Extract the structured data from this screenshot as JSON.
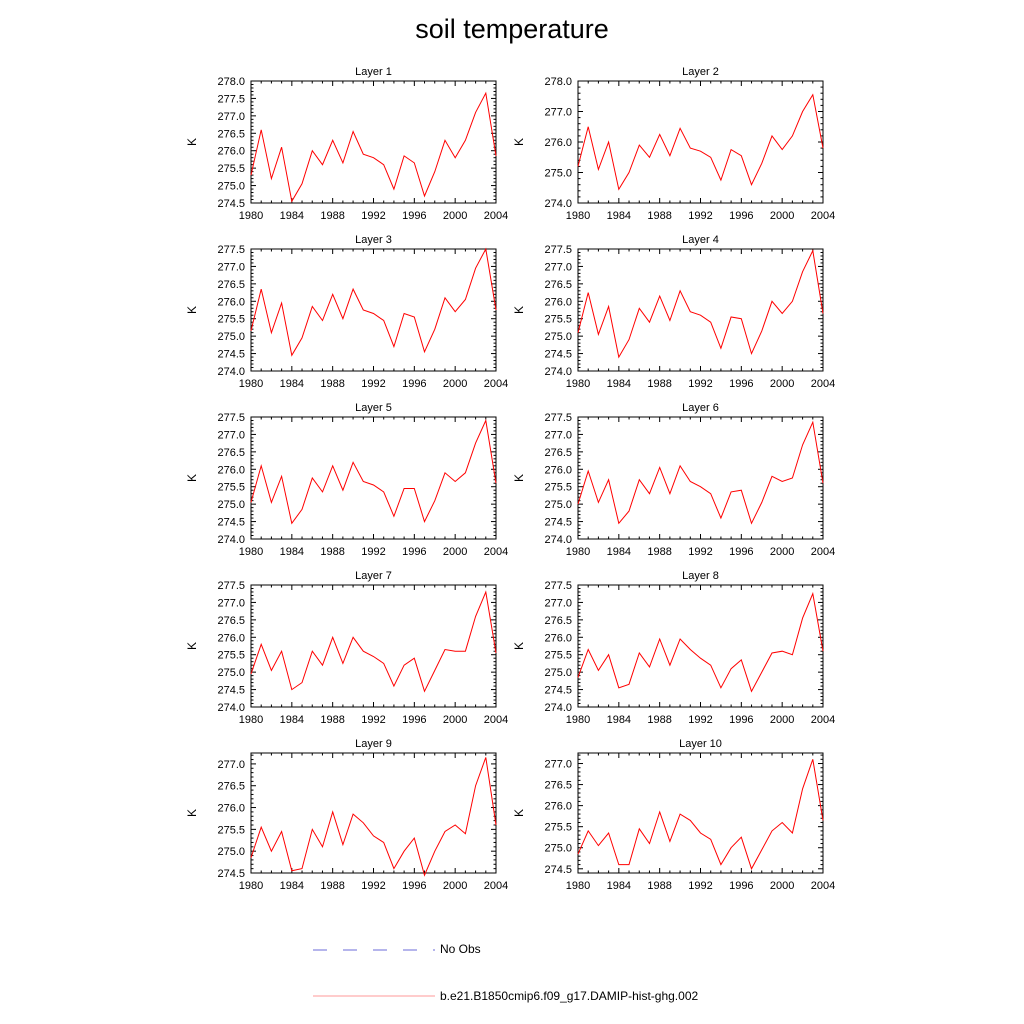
{
  "title": "soil temperature",
  "colors": {
    "model_line": "#ff0000",
    "obs_line": "#6b6bd8",
    "axis": "#000000",
    "legend_model": "#ff9999"
  },
  "chart_data": [
    {
      "type": "line",
      "title": "Layer 1",
      "ylabel": "K",
      "xlim": [
        1980,
        2004
      ],
      "ylim": [
        274.5,
        278.0
      ],
      "x_ticks": [
        1980,
        1984,
        1988,
        1992,
        1996,
        2000,
        2004
      ],
      "y_ticks": [
        274.5,
        275.0,
        275.5,
        276.0,
        276.5,
        277.0,
        277.5,
        278.0
      ],
      "x": [
        1980,
        1981,
        1982,
        1983,
        1984,
        1985,
        1986,
        1987,
        1988,
        1989,
        1990,
        1991,
        1992,
        1993,
        1994,
        1995,
        1996,
        1997,
        1998,
        1999,
        2000,
        2001,
        2002,
        2003,
        2004
      ],
      "y": [
        275.3,
        276.6,
        275.2,
        276.1,
        274.55,
        275.05,
        276.0,
        275.6,
        276.3,
        275.65,
        276.55,
        275.9,
        275.8,
        275.6,
        274.9,
        275.85,
        275.65,
        274.7,
        275.4,
        276.3,
        275.8,
        276.3,
        277.1,
        277.65,
        275.85
      ]
    },
    {
      "type": "line",
      "title": "Layer 2",
      "ylabel": "K",
      "xlim": [
        1980,
        2004
      ],
      "ylim": [
        274.0,
        278.0
      ],
      "x_ticks": [
        1980,
        1984,
        1988,
        1992,
        1996,
        2000,
        2004
      ],
      "y_ticks": [
        274.0,
        275.0,
        276.0,
        277.0,
        278.0
      ],
      "x": [
        1980,
        1981,
        1982,
        1983,
        1984,
        1985,
        1986,
        1987,
        1988,
        1989,
        1990,
        1991,
        1992,
        1993,
        1994,
        1995,
        1996,
        1997,
        1998,
        1999,
        2000,
        2001,
        2002,
        2003,
        2004
      ],
      "y": [
        275.2,
        276.5,
        275.1,
        276.0,
        274.45,
        275.0,
        275.9,
        275.5,
        276.25,
        275.55,
        276.45,
        275.8,
        275.7,
        275.5,
        274.75,
        275.75,
        275.55,
        274.6,
        275.3,
        276.2,
        275.75,
        276.2,
        277.0,
        277.55,
        275.8
      ]
    },
    {
      "type": "line",
      "title": "Layer 3",
      "ylabel": "K",
      "xlim": [
        1980,
        2004
      ],
      "ylim": [
        274.0,
        277.5
      ],
      "x_ticks": [
        1980,
        1984,
        1988,
        1992,
        1996,
        2000,
        2004
      ],
      "y_ticks": [
        274.0,
        274.5,
        275.0,
        275.5,
        276.0,
        276.5,
        277.0,
        277.5
      ],
      "x": [
        1980,
        1981,
        1982,
        1983,
        1984,
        1985,
        1986,
        1987,
        1988,
        1989,
        1990,
        1991,
        1992,
        1993,
        1994,
        1995,
        1996,
        1997,
        1998,
        1999,
        2000,
        2001,
        2002,
        2003,
        2004
      ],
      "y": [
        275.15,
        276.35,
        275.1,
        275.95,
        274.45,
        274.95,
        275.85,
        275.45,
        276.2,
        275.5,
        276.35,
        275.75,
        275.65,
        275.45,
        274.7,
        275.65,
        275.55,
        274.55,
        275.2,
        276.1,
        275.7,
        276.05,
        276.95,
        277.5,
        275.75
      ]
    },
    {
      "type": "line",
      "title": "Layer 4",
      "ylabel": "K",
      "xlim": [
        1980,
        2004
      ],
      "ylim": [
        274.0,
        277.5
      ],
      "x_ticks": [
        1980,
        1984,
        1988,
        1992,
        1996,
        2000,
        2004
      ],
      "y_ticks": [
        274.0,
        274.5,
        275.0,
        275.5,
        276.0,
        276.5,
        277.0,
        277.5
      ],
      "x": [
        1980,
        1981,
        1982,
        1983,
        1984,
        1985,
        1986,
        1987,
        1988,
        1989,
        1990,
        1991,
        1992,
        1993,
        1994,
        1995,
        1996,
        1997,
        1998,
        1999,
        2000,
        2001,
        2002,
        2003,
        2004
      ],
      "y": [
        275.1,
        276.25,
        275.05,
        275.85,
        274.4,
        274.9,
        275.8,
        275.4,
        276.15,
        275.45,
        276.3,
        275.7,
        275.6,
        275.4,
        274.65,
        275.55,
        275.5,
        274.5,
        275.15,
        276.0,
        275.65,
        276.0,
        276.85,
        277.45,
        275.65
      ]
    },
    {
      "type": "line",
      "title": "Layer 5",
      "ylabel": "K",
      "xlim": [
        1980,
        2004
      ],
      "ylim": [
        274.0,
        277.5
      ],
      "x_ticks": [
        1980,
        1984,
        1988,
        1992,
        1996,
        2000,
        2004
      ],
      "y_ticks": [
        274.0,
        274.5,
        275.0,
        275.5,
        276.0,
        276.5,
        277.0,
        277.5
      ],
      "x": [
        1980,
        1981,
        1982,
        1983,
        1984,
        1985,
        1986,
        1987,
        1988,
        1989,
        1990,
        1991,
        1992,
        1993,
        1994,
        1995,
        1996,
        1997,
        1998,
        1999,
        2000,
        2001,
        2002,
        2003,
        2004
      ],
      "y": [
        275.05,
        276.1,
        275.05,
        275.8,
        274.45,
        274.85,
        275.75,
        275.35,
        276.1,
        275.4,
        276.2,
        275.65,
        275.55,
        275.35,
        274.65,
        275.45,
        275.45,
        274.5,
        275.1,
        275.9,
        275.65,
        275.9,
        276.75,
        277.4,
        275.6
      ]
    },
    {
      "type": "line",
      "title": "Layer 6",
      "ylabel": "K",
      "xlim": [
        1980,
        2004
      ],
      "ylim": [
        274.0,
        277.5
      ],
      "x_ticks": [
        1980,
        1984,
        1988,
        1992,
        1996,
        2000,
        2004
      ],
      "y_ticks": [
        274.0,
        274.5,
        275.0,
        275.5,
        276.0,
        276.5,
        277.0,
        277.5
      ],
      "x": [
        1980,
        1981,
        1982,
        1983,
        1984,
        1985,
        1986,
        1987,
        1988,
        1989,
        1990,
        1991,
        1992,
        1993,
        1994,
        1995,
        1996,
        1997,
        1998,
        1999,
        2000,
        2001,
        2002,
        2003,
        2004
      ],
      "y": [
        275.0,
        275.95,
        275.05,
        275.7,
        274.45,
        274.8,
        275.7,
        275.3,
        276.05,
        275.3,
        276.1,
        275.65,
        275.5,
        275.3,
        274.6,
        275.35,
        275.4,
        274.45,
        275.05,
        275.8,
        275.65,
        275.75,
        276.7,
        277.35,
        275.6
      ]
    },
    {
      "type": "line",
      "title": "Layer 7",
      "ylabel": "K",
      "xlim": [
        1980,
        2004
      ],
      "ylim": [
        274.0,
        277.5
      ],
      "x_ticks": [
        1980,
        1984,
        1988,
        1992,
        1996,
        2000,
        2004
      ],
      "y_ticks": [
        274.0,
        274.5,
        275.0,
        275.5,
        276.0,
        276.5,
        277.0,
        277.5
      ],
      "x": [
        1980,
        1981,
        1982,
        1983,
        1984,
        1985,
        1986,
        1987,
        1988,
        1989,
        1990,
        1991,
        1992,
        1993,
        1994,
        1995,
        1996,
        1997,
        1998,
        1999,
        2000,
        2001,
        2002,
        2003,
        2004
      ],
      "y": [
        274.95,
        275.8,
        275.05,
        275.6,
        274.5,
        274.7,
        275.6,
        275.2,
        276.0,
        275.25,
        276.0,
        275.6,
        275.45,
        275.25,
        274.6,
        275.2,
        275.4,
        274.45,
        275.05,
        275.65,
        275.6,
        275.6,
        276.6,
        277.3,
        275.55
      ]
    },
    {
      "type": "line",
      "title": "Layer 8",
      "ylabel": "K",
      "xlim": [
        1980,
        2004
      ],
      "ylim": [
        274.0,
        277.5
      ],
      "x_ticks": [
        1980,
        1984,
        1988,
        1992,
        1996,
        2000,
        2004
      ],
      "y_ticks": [
        274.0,
        274.5,
        275.0,
        275.5,
        276.0,
        276.5,
        277.0,
        277.5
      ],
      "x": [
        1980,
        1981,
        1982,
        1983,
        1984,
        1985,
        1986,
        1987,
        1988,
        1989,
        1990,
        1991,
        1992,
        1993,
        1994,
        1995,
        1996,
        1997,
        1998,
        1999,
        2000,
        2001,
        2002,
        2003,
        2004
      ],
      "y": [
        274.85,
        275.65,
        275.05,
        275.5,
        274.55,
        274.65,
        275.55,
        275.15,
        275.95,
        275.2,
        275.95,
        275.65,
        275.4,
        275.2,
        274.55,
        275.1,
        275.35,
        274.45,
        275.0,
        275.55,
        275.6,
        275.5,
        276.55,
        277.25,
        275.6
      ]
    },
    {
      "type": "line",
      "title": "Layer 9",
      "ylabel": "K",
      "xlim": [
        1980,
        2004
      ],
      "ylim": [
        274.5,
        277.25
      ],
      "x_ticks": [
        1980,
        1984,
        1988,
        1992,
        1996,
        2000,
        2004
      ],
      "y_ticks": [
        274.5,
        275.0,
        275.5,
        276.0,
        276.5,
        277.0
      ],
      "x": [
        1980,
        1981,
        1982,
        1983,
        1984,
        1985,
        1986,
        1987,
        1988,
        1989,
        1990,
        1991,
        1992,
        1993,
        1994,
        1995,
        1996,
        1997,
        1998,
        1999,
        2000,
        2001,
        2002,
        2003,
        2004
      ],
      "y": [
        274.85,
        275.55,
        275.0,
        275.45,
        274.55,
        274.6,
        275.5,
        275.1,
        275.9,
        275.15,
        275.85,
        275.65,
        275.35,
        275.2,
        274.6,
        275.0,
        275.3,
        274.45,
        275.0,
        275.45,
        275.6,
        275.4,
        276.5,
        277.15,
        275.6
      ]
    },
    {
      "type": "line",
      "title": "Layer 10",
      "ylabel": "K",
      "xlim": [
        1980,
        2004
      ],
      "ylim": [
        274.4,
        277.25
      ],
      "x_ticks": [
        1980,
        1984,
        1988,
        1992,
        1996,
        2000,
        2004
      ],
      "y_ticks": [
        274.5,
        275.0,
        275.5,
        276.0,
        276.5,
        277.0
      ],
      "x": [
        1980,
        1981,
        1982,
        1983,
        1984,
        1985,
        1986,
        1987,
        1988,
        1989,
        1990,
        1991,
        1992,
        1993,
        1994,
        1995,
        1996,
        1997,
        1998,
        1999,
        2000,
        2001,
        2002,
        2003,
        2004
      ],
      "y": [
        274.85,
        275.4,
        275.05,
        275.35,
        274.6,
        274.6,
        275.45,
        275.1,
        275.85,
        275.15,
        275.8,
        275.65,
        275.35,
        275.2,
        274.6,
        275.0,
        275.25,
        274.5,
        274.95,
        275.4,
        275.6,
        275.35,
        276.4,
        277.1,
        275.65
      ]
    }
  ],
  "legend": [
    {
      "label": "No Obs",
      "style": "dashed",
      "color": "#6b6bd8"
    },
    {
      "label": "b.e21.B1850cmip6.f09_g17.DAMIP-hist-ghg.002",
      "style": "solid",
      "color": "#ff9999"
    }
  ]
}
